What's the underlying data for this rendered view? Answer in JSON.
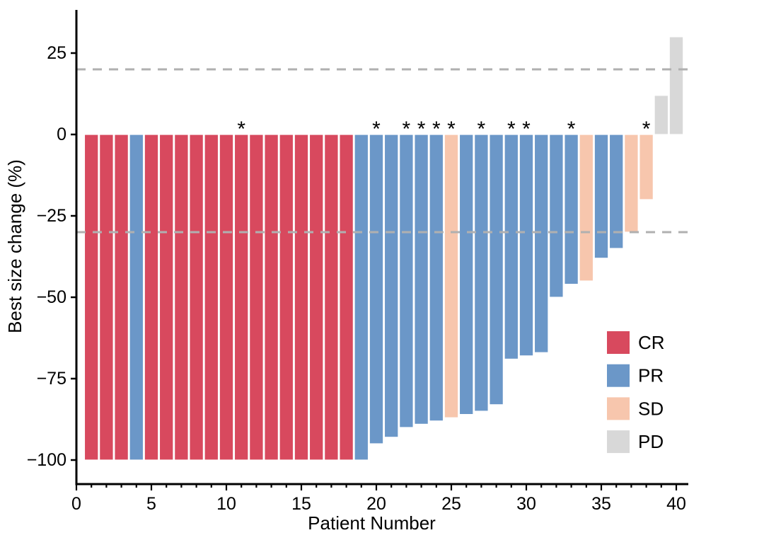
{
  "chart_data": {
    "type": "bar",
    "subtype": "waterfall",
    "title": "",
    "xlabel": "Patient Number",
    "ylabel": "Best size change (%)",
    "xlim": [
      0,
      40.8
    ],
    "ylim": [
      -108,
      38
    ],
    "x_ticks_major": [
      0,
      5,
      10,
      15,
      20,
      25,
      30,
      35,
      40
    ],
    "x_ticks_minor_every": 1,
    "y_ticks": [
      25,
      0,
      -25,
      -50,
      -75,
      -100
    ],
    "grid": "off",
    "reference_lines": [
      {
        "value": 20,
        "style": "dashed",
        "color": "#b0b0b0"
      },
      {
        "value": -30,
        "style": "dashed",
        "color": "#b0b0b0"
      }
    ],
    "legend_position": "inside-right",
    "legend": [
      {
        "label": "CR",
        "color": "#d8495e"
      },
      {
        "label": "PR",
        "color": "#6b97c8"
      },
      {
        "label": "SD",
        "color": "#f7c6ad"
      },
      {
        "label": "PD",
        "color": "#d8d8d8"
      }
    ],
    "colors": {
      "CR": "#d8495e",
      "PR": "#6b97c8",
      "SD": "#f7c6ad",
      "PD": "#d8d8d8",
      "axis": "#000000",
      "bar_stroke": "#ffffff",
      "reference_line": "#b0b0b0"
    },
    "annotation_symbol": "*",
    "asterisk_patients": [
      11,
      20,
      22,
      23,
      24,
      25,
      27,
      29,
      30,
      33,
      38
    ],
    "patients": [
      {
        "id": 1,
        "value": -100,
        "response": "CR",
        "star": false
      },
      {
        "id": 2,
        "value": -100,
        "response": "CR",
        "star": false
      },
      {
        "id": 3,
        "value": -100,
        "response": "CR",
        "star": false
      },
      {
        "id": 4,
        "value": -100,
        "response": "PR",
        "star": false
      },
      {
        "id": 5,
        "value": -100,
        "response": "CR",
        "star": false
      },
      {
        "id": 6,
        "value": -100,
        "response": "CR",
        "star": false
      },
      {
        "id": 7,
        "value": -100,
        "response": "CR",
        "star": false
      },
      {
        "id": 8,
        "value": -100,
        "response": "CR",
        "star": false
      },
      {
        "id": 9,
        "value": -100,
        "response": "CR",
        "star": false
      },
      {
        "id": 10,
        "value": -100,
        "response": "CR",
        "star": false
      },
      {
        "id": 11,
        "value": -100,
        "response": "CR",
        "star": true
      },
      {
        "id": 12,
        "value": -100,
        "response": "CR",
        "star": false
      },
      {
        "id": 13,
        "value": -100,
        "response": "CR",
        "star": false
      },
      {
        "id": 14,
        "value": -100,
        "response": "CR",
        "star": false
      },
      {
        "id": 15,
        "value": -100,
        "response": "CR",
        "star": false
      },
      {
        "id": 16,
        "value": -100,
        "response": "CR",
        "star": false
      },
      {
        "id": 17,
        "value": -100,
        "response": "CR",
        "star": false
      },
      {
        "id": 18,
        "value": -100,
        "response": "CR",
        "star": false
      },
      {
        "id": 19,
        "value": -100,
        "response": "PR",
        "star": false
      },
      {
        "id": 20,
        "value": -95,
        "response": "PR",
        "star": true
      },
      {
        "id": 21,
        "value": -93,
        "response": "PR",
        "star": false
      },
      {
        "id": 22,
        "value": -90,
        "response": "PR",
        "star": true
      },
      {
        "id": 23,
        "value": -89,
        "response": "PR",
        "star": true
      },
      {
        "id": 24,
        "value": -88,
        "response": "PR",
        "star": true
      },
      {
        "id": 25,
        "value": -87,
        "response": "SD",
        "star": true
      },
      {
        "id": 26,
        "value": -86,
        "response": "PR",
        "star": false
      },
      {
        "id": 27,
        "value": -85,
        "response": "PR",
        "star": true
      },
      {
        "id": 28,
        "value": -83,
        "response": "PR",
        "star": false
      },
      {
        "id": 29,
        "value": -69,
        "response": "PR",
        "star": true
      },
      {
        "id": 30,
        "value": -68,
        "response": "PR",
        "star": true
      },
      {
        "id": 31,
        "value": -67,
        "response": "PR",
        "star": false
      },
      {
        "id": 32,
        "value": -50,
        "response": "PR",
        "star": false
      },
      {
        "id": 33,
        "value": -46,
        "response": "PR",
        "star": true
      },
      {
        "id": 34,
        "value": -45,
        "response": "SD",
        "star": false
      },
      {
        "id": 35,
        "value": -38,
        "response": "PR",
        "star": false
      },
      {
        "id": 36,
        "value": -35,
        "response": "PR",
        "star": false
      },
      {
        "id": 37,
        "value": -30,
        "response": "SD",
        "star": false
      },
      {
        "id": 38,
        "value": -20,
        "response": "SD",
        "star": true
      },
      {
        "id": 39,
        "value": 12,
        "response": "PD",
        "star": false
      },
      {
        "id": 40,
        "value": 30,
        "response": "PD",
        "star": false
      }
    ]
  }
}
